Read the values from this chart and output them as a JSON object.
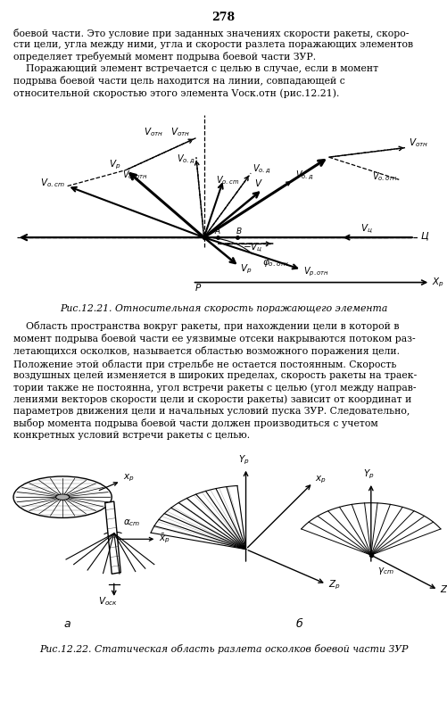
{
  "page_number": "278",
  "top_text_lines": [
    "боевой части. Это условие при заданных значениях скорости ракеты, скоро-",
    "сти цели, угла между ними, угла и скорости разлета поражающих элементов",
    "определяет требуемый момент подрыва боевой части ЗУР.",
    "    Поражающий элемент встречается с целью в случае, если в момент",
    "подрыва боевой части цель находится на линии, совпадающей с",
    "относительной скоростью этого элемента Vоск.отн (рис.12.21)."
  ],
  "fig1_caption": "Рис.12.21. Относительная скорость поражающего элемента",
  "middle_text_lines": [
    "    Область пространства вокруг ракеты, при нахождении цели в которой в",
    "момент подрыва боевой части ее уязвимые отсеки накрываются потоком раз-",
    "летающихся осколков, называется областью возможного поражения цели.",
    "Положение этой области при стрельбе не остается постоянным. Скорость",
    "воздушных целей изменяется в широких пределах, скорость ракеты на траек-",
    "тории также не постоянна, угол встречи ракеты с целью (угол между направ-",
    "лениями векторов скорости цели и скорости ракеты) зависит от координат и",
    "параметров движения цели и начальных условий пуска ЗУР. Следовательно,",
    "выбор момента подрыва боевой части должен производиться с учетом",
    "конкретных условий встречи ракеты с целью."
  ],
  "fig2_caption": "Рис.12.22. Статическая область разлета осколков боевой части ЗУР",
  "bg": "#ffffff"
}
